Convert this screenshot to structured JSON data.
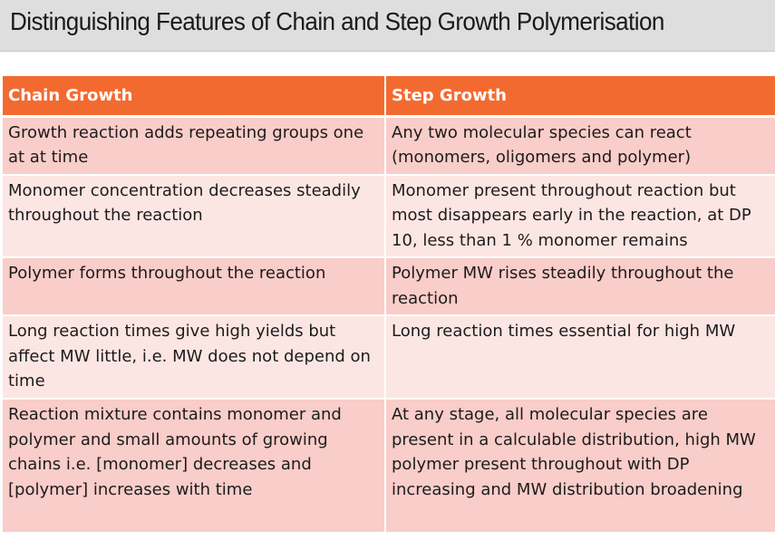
{
  "title": "Distinguishing Features of Chain and Step Growth Polymerisation",
  "table": {
    "headers": [
      "Chain Growth",
      "Step Growth"
    ],
    "rows": [
      [
        "Growth reaction adds repeating groups one at at time",
        "Any two molecular species can react (monomers, oligomers and polymer)"
      ],
      [
        "Monomer concentration decreases steadily throughout the reaction",
        "Monomer present throughout reaction but most disappears early in the reaction, at DP 10, less than 1 % monomer remains"
      ],
      [
        "Polymer forms throughout the reaction",
        "Polymer MW rises steadily throughout the reaction"
      ],
      [
        "Long reaction times give high yields but affect MW little, i.e. MW does not depend on time",
        "Long reaction times essential for high MW"
      ],
      [
        "Reaction mixture contains monomer and polymer and small amounts of growing chains i.e. [monomer] decreases and [polymer] increases with time",
        "At any stage, all molecular species are present in a calculable distribution, high MW polymer present throughout with DP increasing and MW distribution broadening"
      ]
    ]
  },
  "colors": {
    "header_bg": "#f36a30",
    "row_odd_bg": "#f9cdc9",
    "row_even_bg": "#fce6e3",
    "title_bar_bg": "#dedede"
  }
}
